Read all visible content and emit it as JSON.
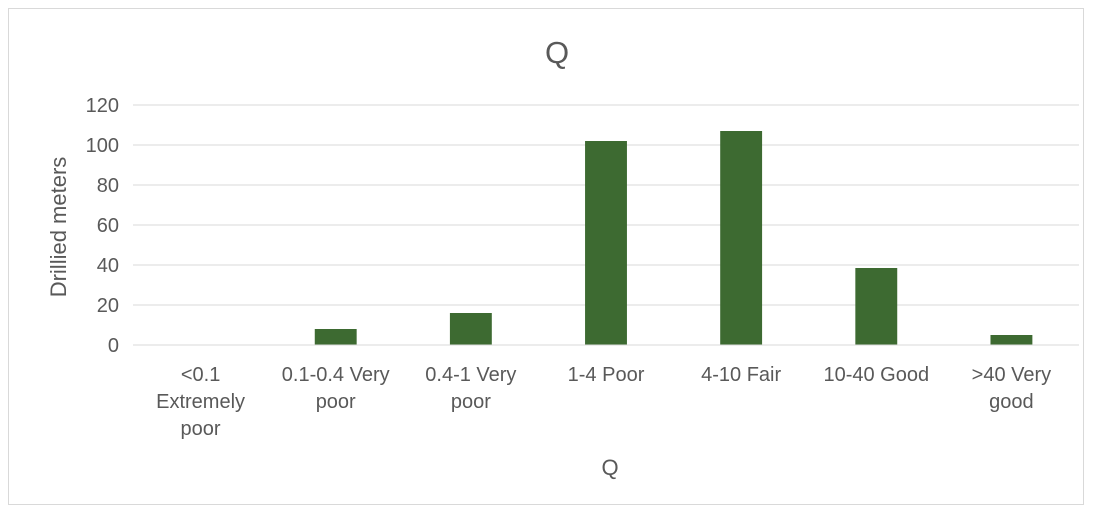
{
  "chart_data": {
    "type": "bar",
    "title": "Q",
    "xlabel": "Q",
    "ylabel": "Drillied meters",
    "categories": [
      [
        "<0.1",
        "Extremely",
        "poor"
      ],
      [
        "0.1-0.4 Very",
        "poor"
      ],
      [
        "0.4-1 Very",
        "poor"
      ],
      [
        "1-4 Poor"
      ],
      [
        "4-10 Fair"
      ],
      [
        "10-40 Good"
      ],
      [
        ">40 Very",
        "good"
      ]
    ],
    "values": [
      0,
      8,
      16,
      102,
      107,
      38.5,
      5
    ],
    "ylim": [
      0,
      120
    ],
    "yticks": [
      0,
      20,
      40,
      60,
      80,
      100,
      120
    ],
    "grid": true,
    "legend": "none",
    "colors": {
      "bar": "#3d6a31",
      "grid": "#d9d9d9",
      "text": "#595959"
    }
  }
}
